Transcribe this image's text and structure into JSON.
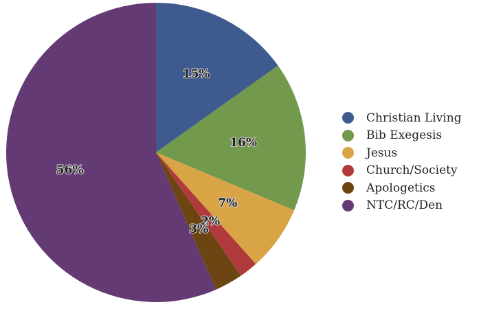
{
  "chart_data": {
    "type": "pie",
    "title": "",
    "legend_position": "right",
    "slices": [
      {
        "label": "Christian Living",
        "value": 15,
        "display": "15%",
        "color": "#3e5a8e"
      },
      {
        "label": "Bib Exegesis",
        "value": 16,
        "display": "16%",
        "color": "#72994c"
      },
      {
        "label": "Jesus",
        "value": 7,
        "display": "7%",
        "color": "#d9a446"
      },
      {
        "label": "Church/Society",
        "value": 2,
        "display": "2%",
        "color": "#b13a3c"
      },
      {
        "label": "Apologetics",
        "value": 3,
        "display": "3%",
        "color": "#6c4512"
      },
      {
        "label": "NTC/RC/Den",
        "value": 56,
        "display": "56%",
        "color": "#633a73"
      }
    ]
  }
}
